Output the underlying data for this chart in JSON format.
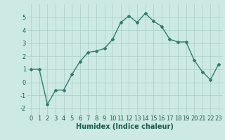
{
  "x": [
    0,
    1,
    2,
    3,
    4,
    5,
    6,
    7,
    8,
    9,
    10,
    11,
    12,
    13,
    14,
    15,
    16,
    17,
    18,
    19,
    20,
    21,
    22,
    23
  ],
  "y": [
    1.0,
    1.0,
    -1.7,
    -0.6,
    -0.6,
    0.6,
    1.6,
    2.3,
    2.4,
    2.6,
    3.3,
    4.6,
    5.1,
    4.6,
    5.3,
    4.7,
    4.3,
    3.3,
    3.1,
    3.1,
    1.7,
    0.8,
    0.2,
    1.4
  ],
  "line_color": "#2e7d6e",
  "marker": "D",
  "marker_size": 2.0,
  "line_width": 1.0,
  "xlabel": "Humidex (Indice chaleur)",
  "xlim": [
    -0.5,
    23.5
  ],
  "ylim": [
    -2.5,
    6.0
  ],
  "yticks": [
    -2,
    -1,
    0,
    1,
    2,
    3,
    4,
    5
  ],
  "xticks": [
    0,
    1,
    2,
    3,
    4,
    5,
    6,
    7,
    8,
    9,
    10,
    11,
    12,
    13,
    14,
    15,
    16,
    17,
    18,
    19,
    20,
    21,
    22,
    23
  ],
  "bg_color": "#cce9e3",
  "grid_color": "#aacfc8",
  "font_color": "#1a5c52",
  "xlabel_fontsize": 7.0,
  "tick_fontsize": 6.0,
  "xlabel_fontweight": "bold"
}
